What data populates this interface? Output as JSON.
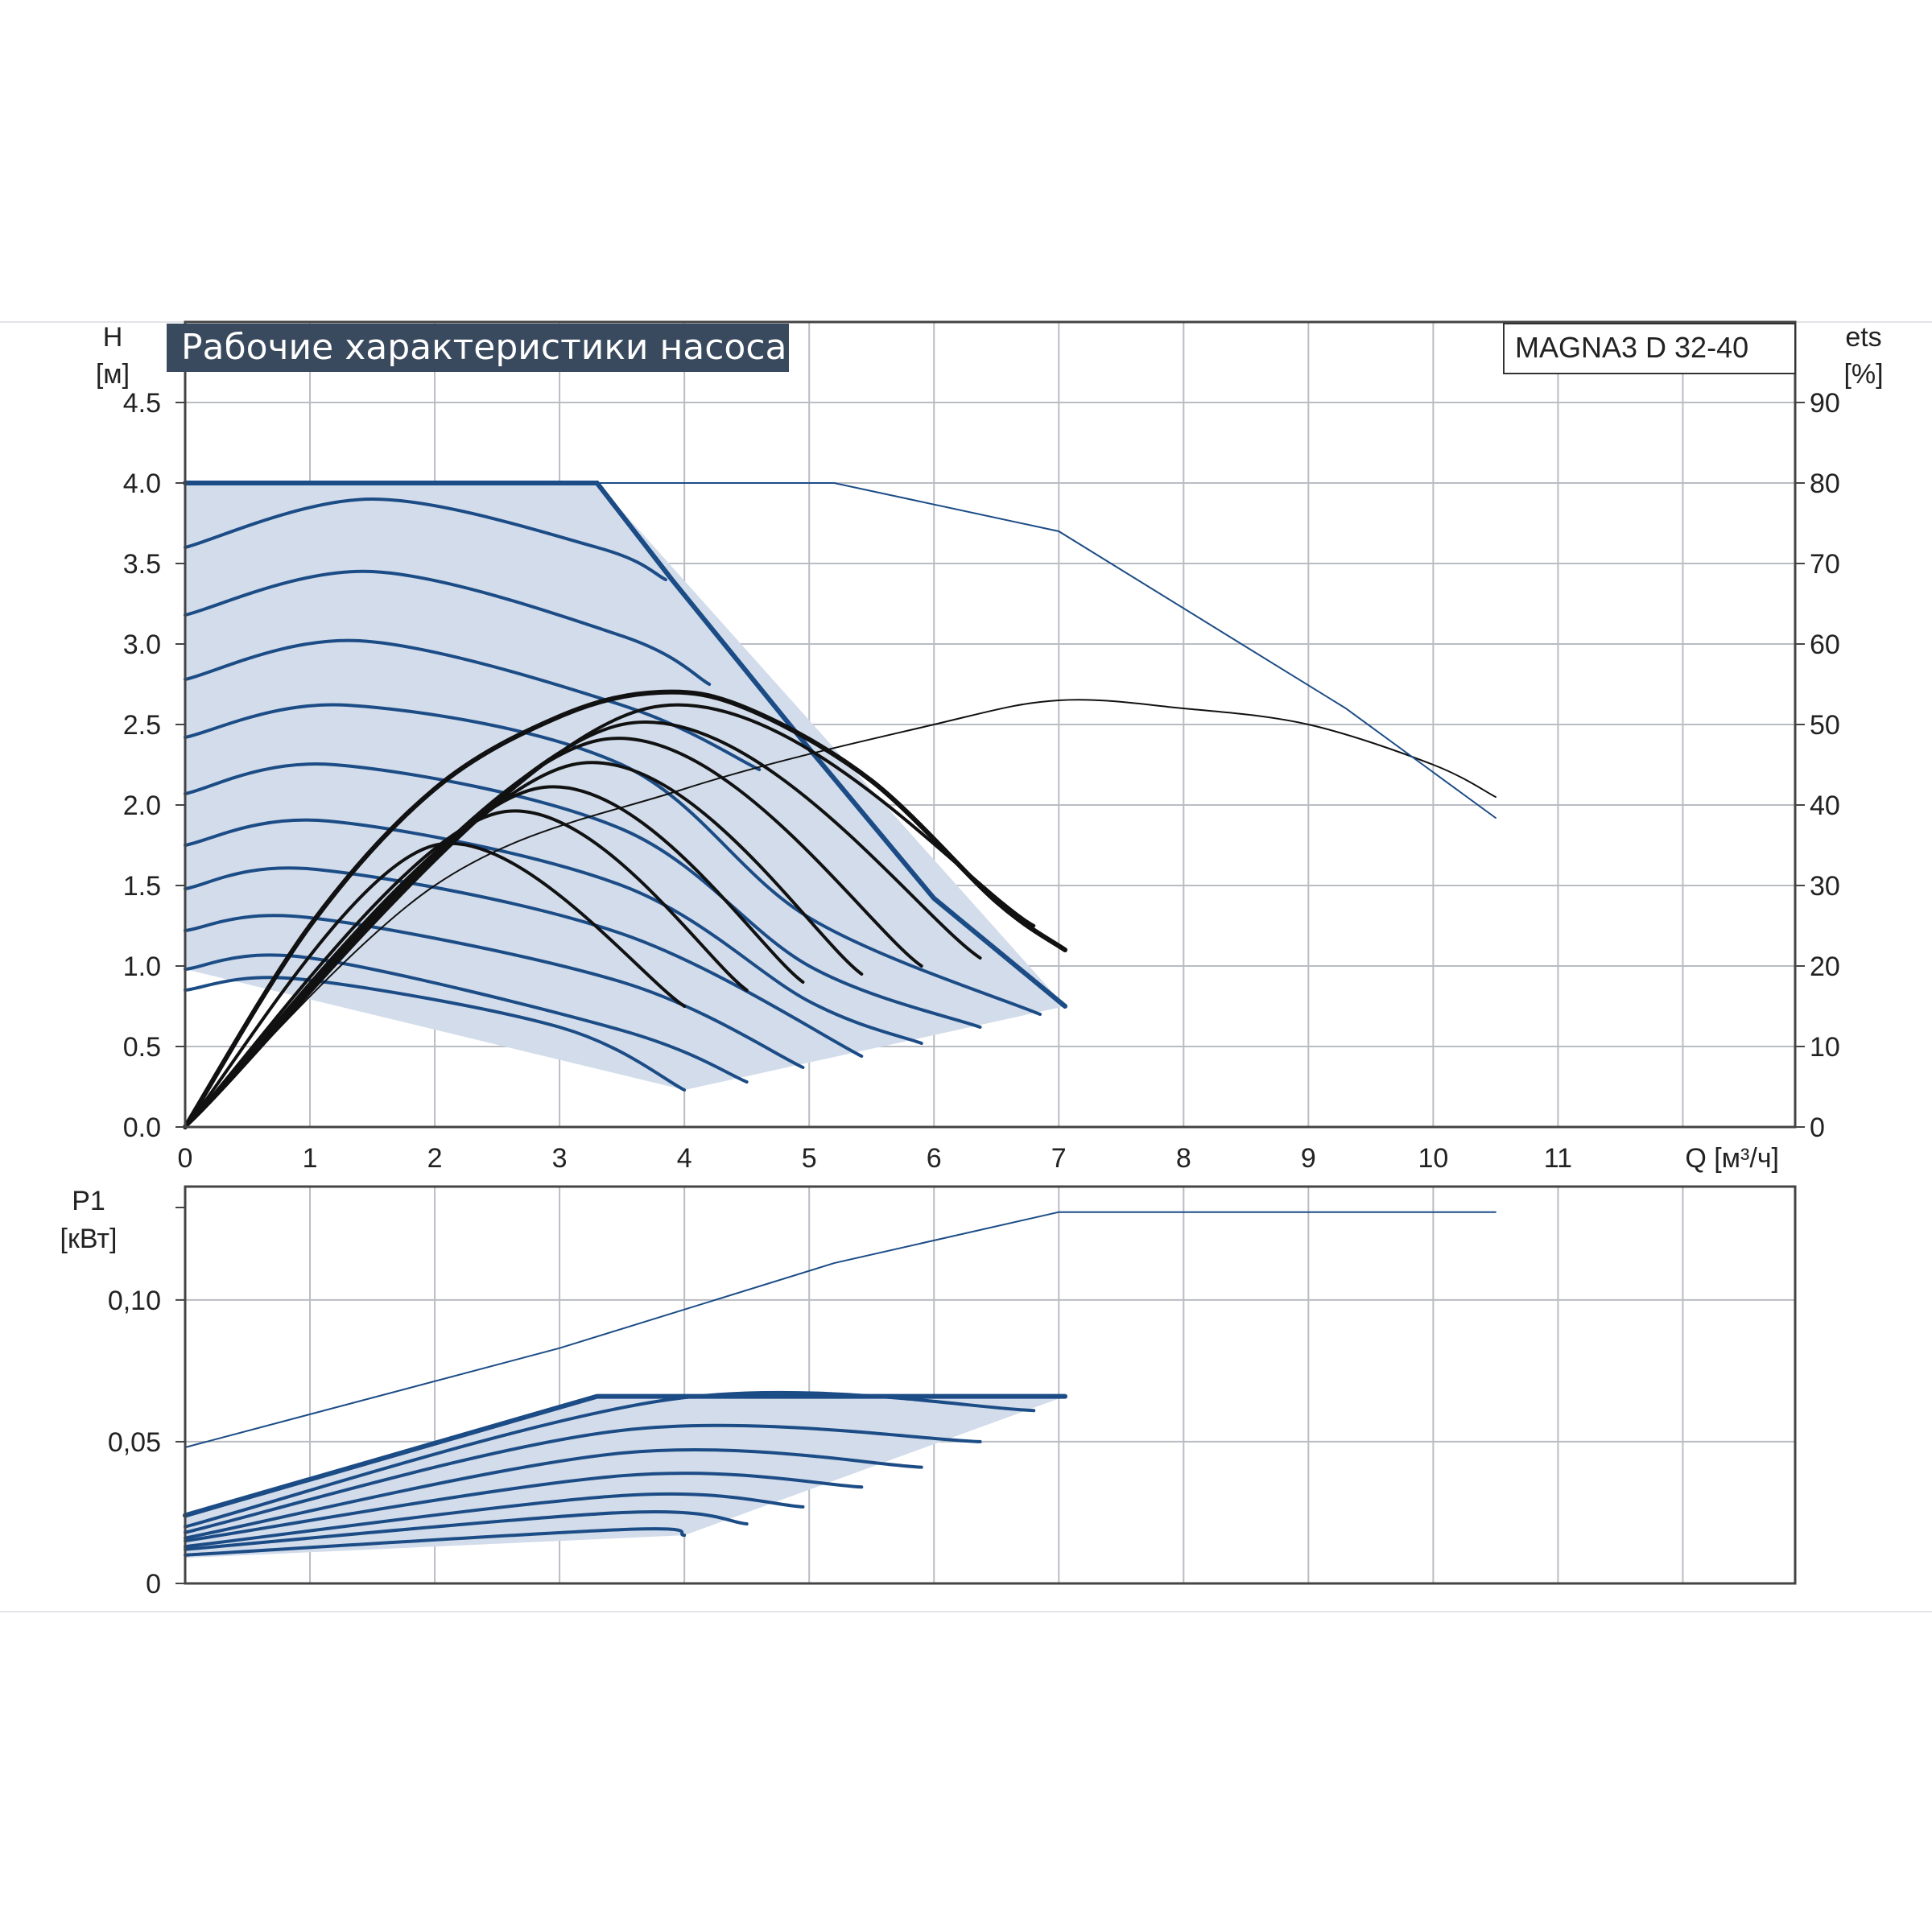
{
  "title": "Рабочие характеристики насоса",
  "model": "MAGNA3 D 32-40",
  "colors": {
    "region_fill": "#d2dcea",
    "blue_curve": "#1c4c86",
    "black_curve": "#111111",
    "grid": "#b9bcc3",
    "title_bg": "#3a4a5e",
    "frame": "#444444"
  },
  "top_chart": {
    "ylabel": "H",
    "yunit": "[м]",
    "y2label": "ets",
    "y2unit": "[%]",
    "xlabel": "Q [м³/ч]",
    "xticks": [
      "0",
      "1",
      "2",
      "3",
      "4",
      "5",
      "6",
      "7",
      "8",
      "9",
      "10",
      "11"
    ],
    "yticks": [
      "0.0",
      "0.5",
      "1.0",
      "1.5",
      "2.0",
      "2.5",
      "3.0",
      "3.5",
      "4.0",
      "4.5"
    ],
    "y2ticks": [
      "0",
      "10",
      "20",
      "30",
      "40",
      "50",
      "60",
      "70",
      "80",
      "90"
    ]
  },
  "bottom_chart": {
    "ylabel": "P1",
    "yunit": "[кВт]",
    "yticks": [
      "0",
      "0,05",
      "0,10"
    ]
  },
  "chart_data": [
    {
      "type": "line",
      "title": "Рабочие характеристики насоса",
      "xlabel": "Q [м³/ч]",
      "ylabel": "H [м]",
      "y2label": "ets [%]",
      "xlim": [
        0,
        12.9
      ],
      "ylim": [
        0,
        5.0
      ],
      "y2lim": [
        0,
        100
      ],
      "grid": true,
      "operating_region": [
        [
          0,
          4.0
        ],
        [
          3.3,
          4.0
        ],
        [
          7.05,
          0.75
        ],
        [
          4.0,
          0.23
        ],
        [
          0,
          0.98
        ]
      ],
      "series": [
        {
          "role": "max_head",
          "color": "blue",
          "points": [
            [
              0,
              4.0
            ],
            [
              3.3,
              4.0
            ],
            [
              3.9,
              3.4
            ],
            [
              5.0,
              2.35
            ],
            [
              6.0,
              1.42
            ],
            [
              7.05,
              0.75
            ]
          ]
        },
        {
          "role": "head",
          "color": "blue",
          "points": [
            [
              0,
              3.6
            ],
            [
              1.5,
              3.9
            ],
            [
              3.3,
              3.6
            ],
            [
              3.85,
              3.4
            ]
          ]
        },
        {
          "role": "head",
          "color": "blue",
          "points": [
            [
              0,
              3.18
            ],
            [
              1.5,
              3.45
            ],
            [
              3.5,
              3.05
            ],
            [
              4.2,
              2.75
            ]
          ]
        },
        {
          "role": "head",
          "color": "blue",
          "points": [
            [
              0,
              2.78
            ],
            [
              1.4,
              3.02
            ],
            [
              3.5,
              2.62
            ],
            [
              4.6,
              2.22
            ]
          ]
        },
        {
          "role": "head",
          "color": "blue",
          "points": [
            [
              0,
              2.42
            ],
            [
              1.3,
              2.62
            ],
            [
              3.5,
              2.25
            ],
            [
              5.0,
              1.3
            ],
            [
              6.85,
              0.7
            ]
          ]
        },
        {
          "role": "head",
          "color": "blue",
          "points": [
            [
              0,
              2.07
            ],
            [
              1.2,
              2.25
            ],
            [
              3.5,
              1.85
            ],
            [
              5.0,
              1.0
            ],
            [
              6.37,
              0.62
            ]
          ]
        },
        {
          "role": "head",
          "color": "blue",
          "points": [
            [
              0,
              1.75
            ],
            [
              1.15,
              1.9
            ],
            [
              3.5,
              1.5
            ],
            [
              5.0,
              0.78
            ],
            [
              5.9,
              0.52
            ]
          ]
        },
        {
          "role": "head",
          "color": "blue",
          "points": [
            [
              0,
              1.48
            ],
            [
              1.05,
              1.6
            ],
            [
              3.5,
              1.2
            ],
            [
              5.42,
              0.44
            ]
          ]
        },
        {
          "role": "head",
          "color": "blue",
          "points": [
            [
              0,
              1.22
            ],
            [
              1.0,
              1.3
            ],
            [
              3.5,
              0.9
            ],
            [
              4.95,
              0.37
            ]
          ]
        },
        {
          "role": "head",
          "color": "blue",
          "points": [
            [
              0,
              0.98
            ],
            [
              1.0,
              1.05
            ],
            [
              3.5,
              0.6
            ],
            [
              4.5,
              0.28
            ]
          ]
        },
        {
          "role": "head",
          "color": "blue",
          "points": [
            [
              0,
              0.85
            ],
            [
              0.9,
              0.92
            ],
            [
              3.0,
              0.62
            ],
            [
              4.0,
              0.23
            ]
          ]
        },
        {
          "role": "efficiency_max",
          "color": "black",
          "axis": "right",
          "points": [
            [
              0,
              0
            ],
            [
              1.0,
              25
            ],
            [
              2.0,
              42
            ],
            [
              3.0,
              51
            ],
            [
              3.8,
              54
            ],
            [
              4.5,
              52
            ],
            [
              5.5,
              43
            ],
            [
              6.5,
              28
            ],
            [
              7.05,
              22
            ]
          ]
        },
        {
          "role": "efficiency",
          "color": "black",
          "axis": "right",
          "points": [
            [
              0,
              0
            ],
            [
              3.7,
              52
            ],
            [
              6.8,
              25
            ]
          ]
        },
        {
          "role": "efficiency",
          "color": "black",
          "axis": "right",
          "points": [
            [
              0,
              0
            ],
            [
              3.5,
              50
            ],
            [
              6.37,
              21
            ]
          ]
        },
        {
          "role": "efficiency",
          "color": "black",
          "axis": "right",
          "points": [
            [
              0,
              0
            ],
            [
              3.3,
              48
            ],
            [
              5.9,
              20
            ]
          ]
        },
        {
          "role": "efficiency",
          "color": "black",
          "axis": "right",
          "points": [
            [
              0,
              0
            ],
            [
              3.1,
              45
            ],
            [
              5.42,
              19
            ]
          ]
        },
        {
          "role": "efficiency",
          "color": "black",
          "axis": "right",
          "points": [
            [
              0,
              0
            ],
            [
              2.8,
              42
            ],
            [
              4.95,
              18
            ]
          ]
        },
        {
          "role": "efficiency",
          "color": "black",
          "axis": "right",
          "points": [
            [
              0,
              0
            ],
            [
              2.5,
              39
            ],
            [
              4.5,
              17
            ]
          ]
        },
        {
          "role": "efficiency",
          "color": "black",
          "axis": "right",
          "points": [
            [
              0,
              0
            ],
            [
              2.0,
              35
            ],
            [
              4.0,
              15
            ]
          ]
        },
        {
          "role": "efficiency_thin",
          "color": "black",
          "axis": "right",
          "points": [
            [
              0,
              0
            ],
            [
              2.0,
              30
            ],
            [
              4.0,
              42
            ],
            [
              6.0,
              50
            ],
            [
              7.0,
              53
            ],
            [
              8.0,
              52
            ],
            [
              9.0,
              50
            ],
            [
              10.0,
              45
            ],
            [
              10.5,
              41
            ]
          ]
        },
        {
          "role": "head_thin",
          "color": "blue",
          "points": [
            [
              0,
              4.0
            ],
            [
              5.2,
              4.0
            ],
            [
              7.0,
              3.7
            ],
            [
              9.3,
              2.6
            ],
            [
              10.5,
              1.92
            ]
          ]
        }
      ]
    },
    {
      "type": "line",
      "xlabel": "Q [м³/ч]",
      "ylabel": "P1 [кВт]",
      "xlim": [
        0,
        12.9
      ],
      "ylim": [
        0,
        0.14
      ],
      "grid": true,
      "operating_region": [
        [
          0,
          0.024
        ],
        [
          3.3,
          0.066
        ],
        [
          7.05,
          0.066
        ],
        [
          4.0,
          0.017
        ],
        [
          0,
          0.009
        ]
      ],
      "series": [
        {
          "role": "max_power",
          "color": "blue",
          "points": [
            [
              0,
              0.024
            ],
            [
              3.3,
              0.066
            ],
            [
              7.05,
              0.066
            ]
          ]
        },
        {
          "role": "power",
          "color": "blue",
          "points": [
            [
              0,
              0.02
            ],
            [
              3.9,
              0.065
            ],
            [
              6.8,
              0.061
            ]
          ]
        },
        {
          "role": "power",
          "color": "blue",
          "points": [
            [
              0,
              0.018
            ],
            [
              3.5,
              0.054
            ],
            [
              6.37,
              0.05
            ]
          ]
        },
        {
          "role": "power",
          "color": "blue",
          "points": [
            [
              0,
              0.016
            ],
            [
              3.5,
              0.046
            ],
            [
              5.9,
              0.041
            ]
          ]
        },
        {
          "role": "power",
          "color": "blue",
          "points": [
            [
              0,
              0.015
            ],
            [
              3.5,
              0.038
            ],
            [
              5.42,
              0.034
            ]
          ]
        },
        {
          "role": "power",
          "color": "blue",
          "points": [
            [
              0,
              0.013
            ],
            [
              3.5,
              0.031
            ],
            [
              4.95,
              0.027
            ]
          ]
        },
        {
          "role": "power",
          "color": "blue",
          "points": [
            [
              0,
              0.012
            ],
            [
              3.5,
              0.025
            ],
            [
              4.5,
              0.021
            ]
          ]
        },
        {
          "role": "power",
          "color": "blue",
          "points": [
            [
              0,
              0.01
            ],
            [
              3.5,
              0.019
            ],
            [
              4.0,
              0.017
            ]
          ]
        },
        {
          "role": "power_thin",
          "color": "blue",
          "points": [
            [
              0,
              0.048
            ],
            [
              3.0,
              0.083
            ],
            [
              5.2,
              0.113
            ],
            [
              7.0,
              0.131
            ],
            [
              10.5,
              0.131
            ]
          ]
        }
      ]
    }
  ]
}
